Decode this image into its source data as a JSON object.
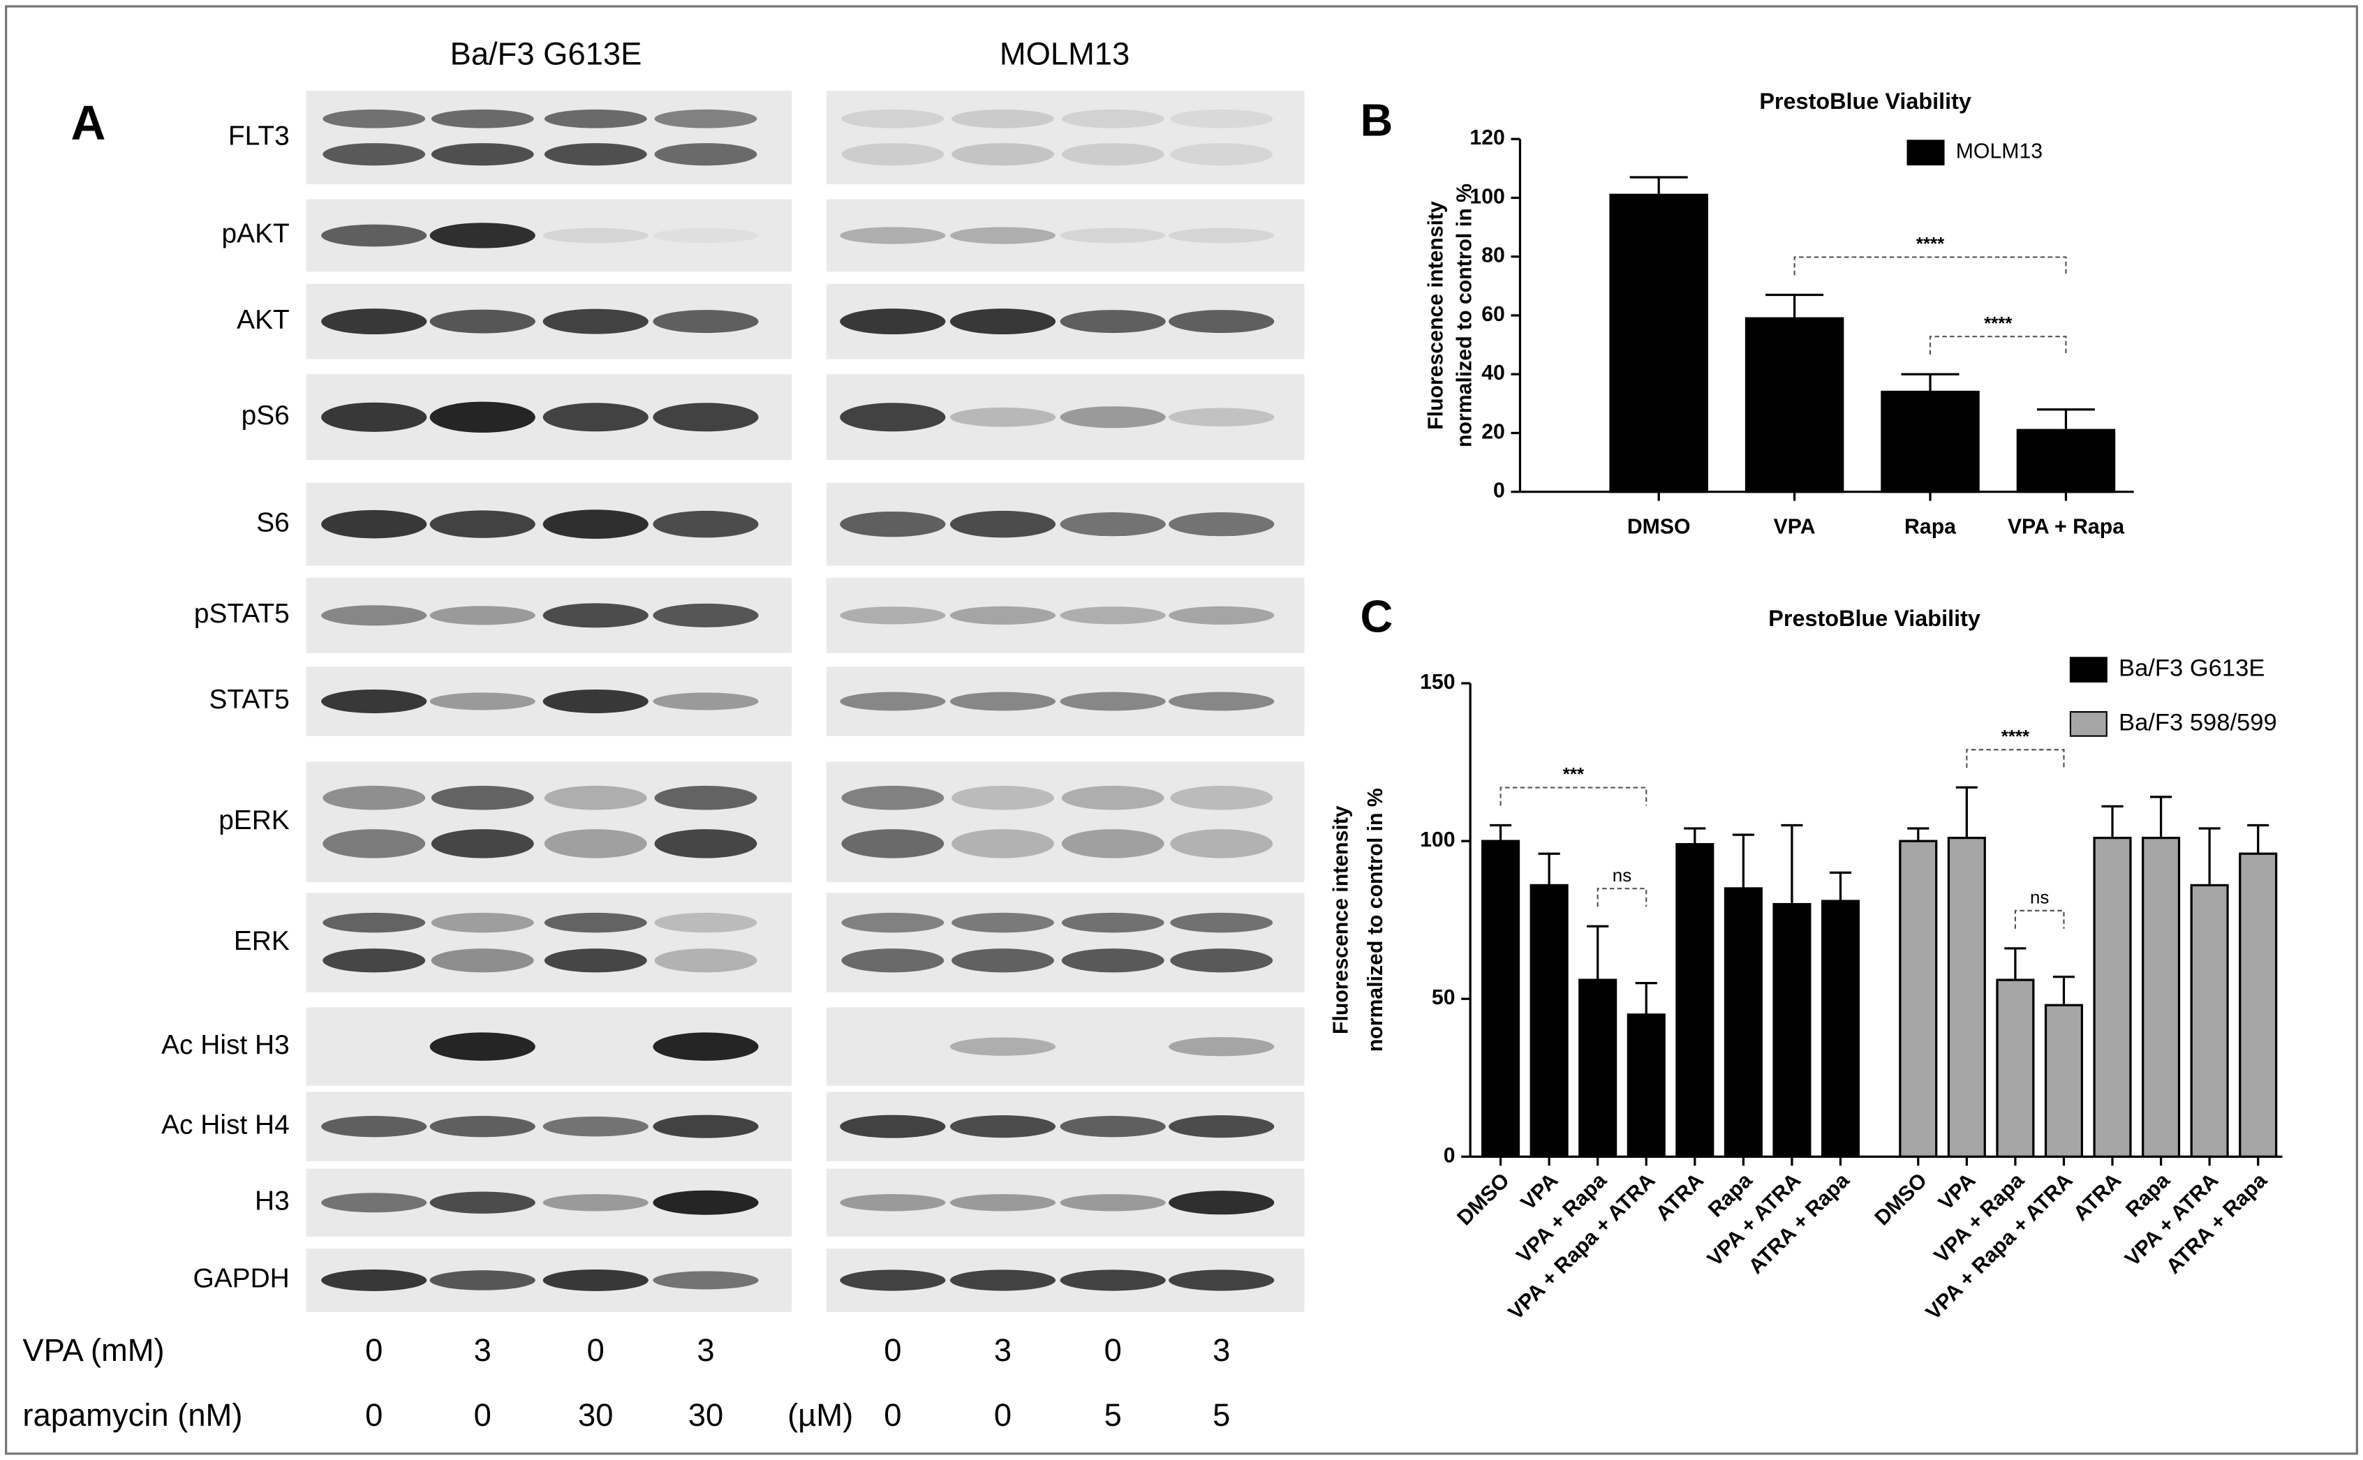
{
  "panel_labels": {
    "a": "A",
    "b": "B",
    "c": "C"
  },
  "blot": {
    "groups": [
      "Ba/F3 G613E",
      "MOLM13"
    ],
    "proteins": [
      "FLT3",
      "pAKT",
      "AKT",
      "pS6",
      "S6",
      "pSTAT5",
      "STAT5",
      "pERK",
      "ERK",
      "Ac Hist H3",
      "Ac Hist H4",
      "H3",
      "GAPDH"
    ],
    "treatments": [
      {
        "label": "VPA (mM)",
        "values": [
          0,
          3,
          0,
          3,
          0,
          3,
          0,
          3
        ]
      },
      {
        "label": "rapamycin (nM)",
        "second_unit": "(µM)",
        "values": [
          0,
          0,
          30,
          30,
          0,
          0,
          5,
          5
        ]
      }
    ]
  },
  "chart_data": [
    {
      "type": "bar",
      "title": "PrestoBlue Viability",
      "y_label": [
        "Fluorescence intensity",
        "normalized to control in %"
      ],
      "categories": [
        "DMSO",
        "VPA",
        "Rapa",
        "VPA + Rapa"
      ],
      "series": [
        {
          "name": "MOLM13",
          "color": "#000000",
          "values": [
            101,
            59,
            34,
            21
          ],
          "errors": [
            6,
            8,
            6,
            7
          ],
          "significance": [
            {
              "from": "VPA",
              "to": "VPA + Rapa",
              "label": "****"
            },
            {
              "from": "Rapa",
              "to": "VPA + Rapa",
              "label": "****"
            }
          ]
        }
      ],
      "ylim": [
        0,
        120
      ],
      "yticks": [
        0,
        20,
        40,
        60,
        80,
        100,
        120
      ],
      "legend": "top-right"
    },
    {
      "type": "bar",
      "title": "PrestoBlue Viability",
      "y_label": [
        "Fluorescence intensity",
        "normalized to control in %"
      ],
      "categories": [
        "DMSO",
        "VPA",
        "VPA + Rapa",
        "VPA + Rapa + ATRA",
        "ATRA",
        "Rapa",
        "VPA + ATRA",
        "ATRA + Rapa",
        "DMSO",
        "VPA",
        "VPA + Rapa",
        "VPA + Rapa + ATRA",
        "ATRA",
        "Rapa",
        "VPA + ATRA",
        "ATRA + Rapa"
      ],
      "series": [
        {
          "name": "Ba/F3 G613E",
          "color": "#000000",
          "values": [
            100,
            86,
            56,
            45,
            99,
            85,
            80,
            81,
            null,
            null,
            null,
            null,
            null,
            null,
            null,
            null
          ],
          "errors": [
            5,
            10,
            17,
            10,
            5,
            17,
            25,
            9,
            null,
            null,
            null,
            null,
            null,
            null,
            null,
            null
          ],
          "significance": [
            {
              "from": "DMSO",
              "to": "VPA + Rapa + ATRA",
              "label": "***"
            },
            {
              "from": "VPA + Rapa",
              "to": "VPA + Rapa + ATRA",
              "label": "ns"
            }
          ]
        },
        {
          "name": "Ba/F3 598/599",
          "color": "#a6a6a6",
          "values": [
            null,
            null,
            null,
            null,
            null,
            null,
            null,
            null,
            100,
            101,
            56,
            48,
            101,
            101,
            86,
            96
          ],
          "errors": [
            null,
            null,
            null,
            null,
            null,
            null,
            null,
            null,
            4,
            16,
            10,
            9,
            10,
            13,
            18,
            9
          ],
          "significance": [
            {
              "from": "VPA",
              "to": "VPA + Rapa + ATRA",
              "label": "****"
            },
            {
              "from": "VPA + Rapa",
              "to": "VPA + Rapa + ATRA",
              "label": "ns"
            }
          ]
        }
      ],
      "ylim": [
        0,
        150
      ],
      "yticks": [
        0,
        50,
        100,
        150
      ],
      "legend": "top-right"
    }
  ]
}
